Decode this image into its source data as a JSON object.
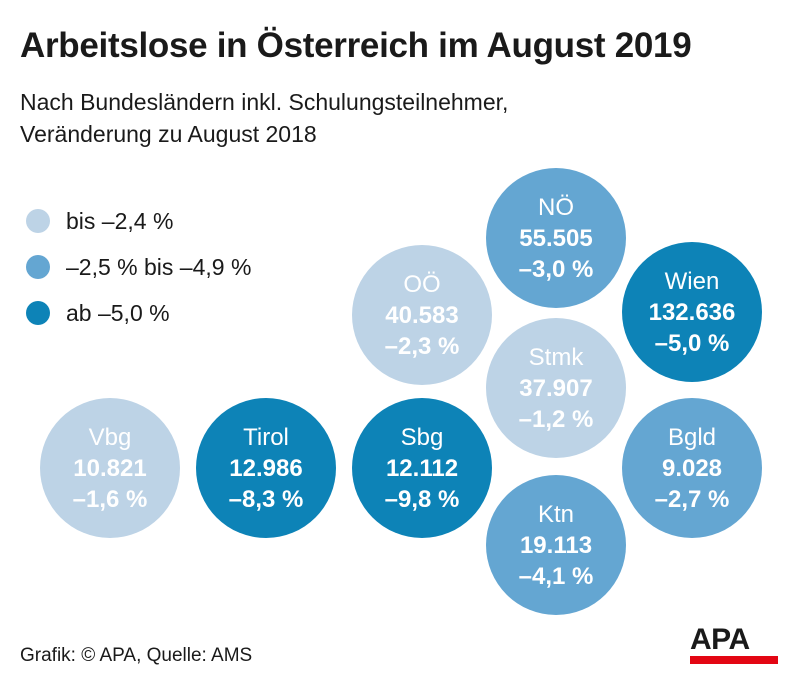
{
  "title": "Arbeitslose in Österreich im August 2019",
  "subtitle_line1": "Nach Bundesländern inkl. Schulungsteilnehmer,",
  "subtitle_line2": "Veränderung zu August 2018",
  "legend": [
    {
      "label": "bis –2,4 %",
      "color": "#bdd3e6"
    },
    {
      "label": "–2,5 % bis –4,9 %",
      "color": "#64a6d2"
    },
    {
      "label": "ab –5,0 %",
      "color": "#0d83b7"
    }
  ],
  "chart_data": {
    "type": "bubble-grid",
    "title": "Arbeitslose in Österreich im August 2019",
    "regions": [
      {
        "name": "NÖ",
        "value": "55.505",
        "change": "–3,0 %",
        "change_pct": -3.0,
        "category": 1
      },
      {
        "name": "Wien",
        "value": "132.636",
        "change": "–5,0 %",
        "change_pct": -5.0,
        "category": 2
      },
      {
        "name": "OÖ",
        "value": "40.583",
        "change": "–2,3 %",
        "change_pct": -2.3,
        "category": 0
      },
      {
        "name": "Stmk",
        "value": "37.907",
        "change": "–1,2 %",
        "change_pct": -1.2,
        "category": 0
      },
      {
        "name": "Vbg",
        "value": "10.821",
        "change": "–1,6 %",
        "change_pct": -1.6,
        "category": 0
      },
      {
        "name": "Tirol",
        "value": "12.986",
        "change": "–8,3 %",
        "change_pct": -8.3,
        "category": 2
      },
      {
        "name": "Sbg",
        "value": "12.112",
        "change": "–9,8 %",
        "change_pct": -9.8,
        "category": 2
      },
      {
        "name": "Bgld",
        "value": "9.028",
        "change": "–2,7 %",
        "change_pct": -2.7,
        "category": 1
      },
      {
        "name": "Ktn",
        "value": "19.113",
        "change": "–4,1 %",
        "change_pct": -4.1,
        "category": 1
      }
    ]
  },
  "source": "Grafik: © APA, Quelle: AMS",
  "logo_text": "APA",
  "logo_color": "#e30613"
}
